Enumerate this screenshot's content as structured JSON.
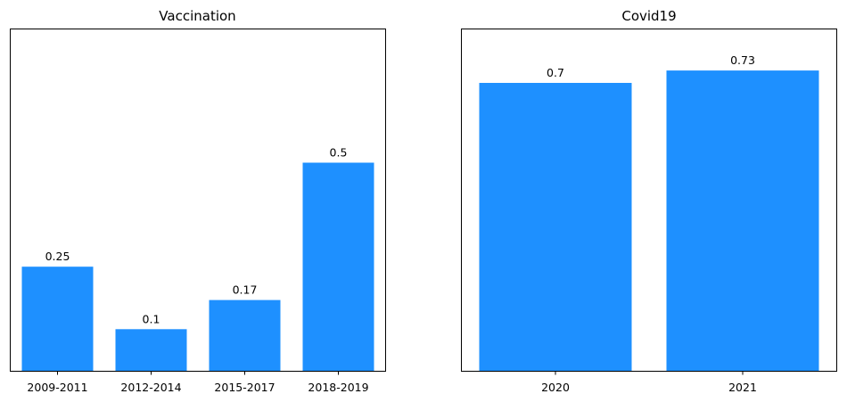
{
  "chart_data": [
    {
      "type": "bar",
      "title": "Vaccination",
      "categories": [
        "2009-2011",
        "2012-2014",
        "2015-2017",
        "2018-2019"
      ],
      "values": [
        0.25,
        0.1,
        0.17,
        0.5
      ],
      "value_labels": [
        "0.25",
        "0.1",
        "0.17",
        "0.5"
      ],
      "xlabel": "",
      "ylabel": "",
      "ylim": [
        0,
        0.82
      ],
      "bar_color": "#1E90FF",
      "grid": false
    },
    {
      "type": "bar",
      "title": "Covid19",
      "categories": [
        "2020",
        "2021"
      ],
      "values": [
        0.7,
        0.73
      ],
      "value_labels": [
        "0.7",
        "0.73"
      ],
      "xlabel": "",
      "ylabel": "",
      "ylim": [
        0,
        0.83
      ],
      "bar_color": "#1E90FF",
      "grid": false
    }
  ]
}
